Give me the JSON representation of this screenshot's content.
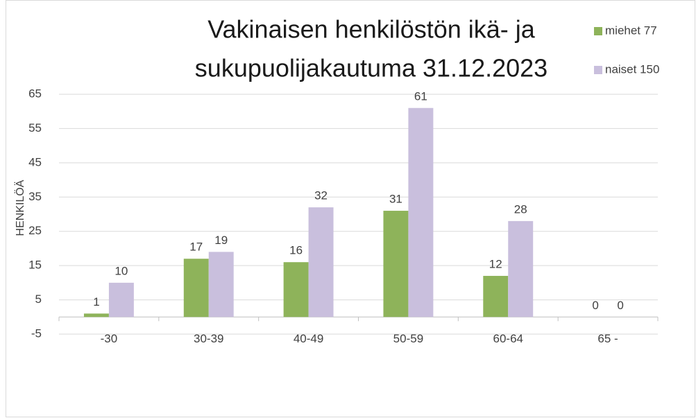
{
  "chart_data": {
    "type": "bar",
    "title": [
      "Vakinaisen henkilöstön ikä- ja",
      "sukupuolijakautuma 31.12.2023"
    ],
    "y_label": "HENKILÖÄ",
    "categories": [
      "-30",
      "30-39",
      "40-49",
      "50-59",
      "60-64",
      "65 -"
    ],
    "series": [
      {
        "name": "miehet 77",
        "color": "#8eb35a",
        "values": [
          1,
          17,
          16,
          31,
          12,
          0
        ]
      },
      {
        "name": "naiset 150",
        "color": "#c9bfdd",
        "values": [
          10,
          19,
          32,
          61,
          28,
          0
        ]
      }
    ],
    "ylim": [
      -5,
      65
    ],
    "yticks": [
      -5,
      5,
      15,
      25,
      35,
      45,
      55,
      65
    ],
    "grid": true,
    "legend": "top-right"
  }
}
